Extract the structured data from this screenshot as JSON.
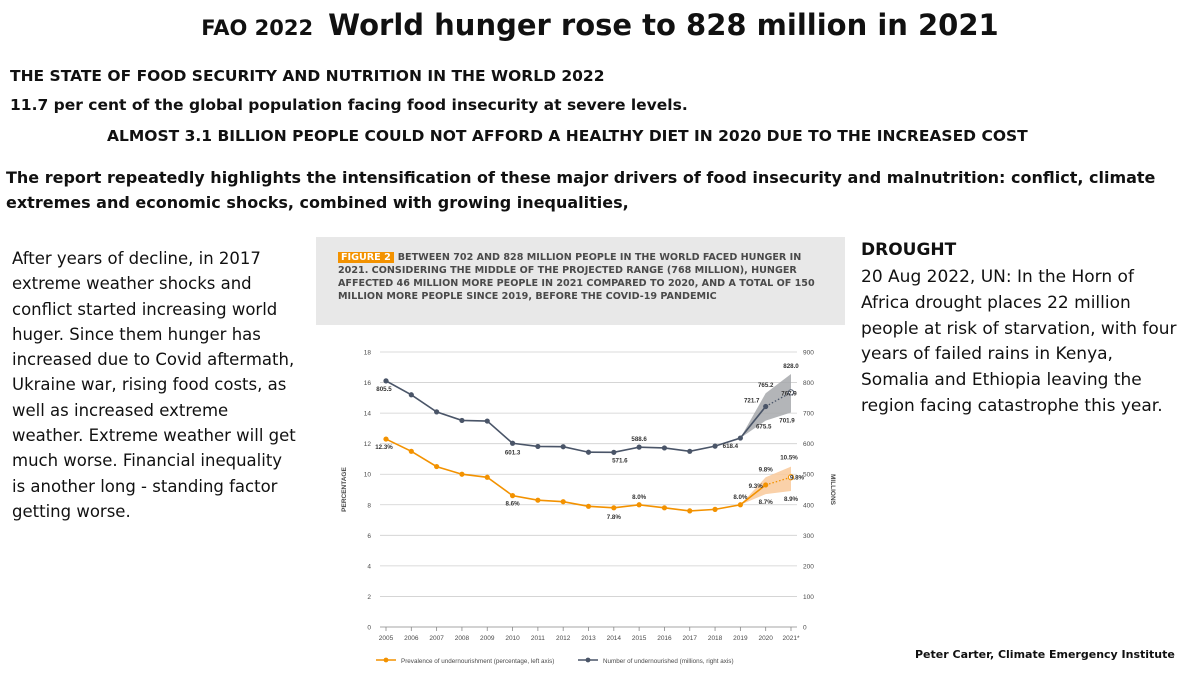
{
  "header": {
    "prefix": "FAO 2022",
    "title": "World hunger rose to 828 million in 2021"
  },
  "highlights": {
    "line1": "THE STATE OF FOOD SECURITY AND NUTRITION IN THE WORLD 2022",
    "line2": "11.7 per cent of the global population facing food insecurity at severe levels.",
    "line3": "ALMOST 3.1 BILLION PEOPLE COULD NOT AFFORD A HEALTHY DIET IN 2020 DUE TO THE  INCREASED COST",
    "line4": "The report repeatedly highlights the intensification of these major drivers of food insecurity and malnutrition: conflict, climate extremes and economic shocks, combined with growing inequalities,"
  },
  "left_text": "After years of decline, in 2017 extreme weather shocks and conflict started increasing world huger. Since them hunger has increased due to Covid aftermath, Ukraine war, rising food costs, as well as increased extreme weather. Extreme weather will get much worse. Financial inequality is another long - standing factor getting worse.",
  "drought": {
    "title": "DROUGHT",
    "text": "20 Aug 2022, UN: In the Horn of Africa drought places 22 million people at risk of starvation, with four years of failed rains in Kenya, Somalia and Ethiopia leaving the region facing catastrophe this year."
  },
  "credit": "Peter Carter, Climate Emergency Institute",
  "figure": {
    "tag": "FIGURE 2",
    "caption": "BETWEEN 702 AND 828 MILLION PEOPLE IN THE WORLD FACED HUNGER IN 2021. CONSIDERING THE MIDDLE OF THE PROJECTED RANGE (768 MILLION), HUNGER AFFECTED 46 MILLION MORE PEOPLE IN 2021 COMPARED TO 2020, AND A TOTAL OF 150 MILLION MORE PEOPLE SINCE 2019, BEFORE THE COVID-19 PANDEMIC"
  },
  "colors": {
    "orange": "#f39200",
    "orange_band": "#f9c99a",
    "gray_line": "#4a5568",
    "gray_band": "#a6a8ab",
    "grid": "#cfcfcf",
    "axis_text": "#4a4a4a"
  },
  "chart_data": {
    "type": "line",
    "x": [
      "2005",
      "2006",
      "2007",
      "2008",
      "2009",
      "2010",
      "2011",
      "2012",
      "2013",
      "2014",
      "2015",
      "2016",
      "2017",
      "2018",
      "2019",
      "2020",
      "2021*"
    ],
    "ylabel": "PERCENTAGE",
    "y2label": "MILLIONS",
    "ylim": [
      0,
      18
    ],
    "y_ticks": [
      0,
      2,
      4,
      6,
      8,
      10,
      12,
      14,
      16,
      18
    ],
    "y2lim": [
      0,
      900
    ],
    "y2_ticks": [
      0,
      100,
      200,
      300,
      400,
      500,
      600,
      700,
      800,
      900
    ],
    "grid": true,
    "legend_position": "bottom",
    "series": [
      {
        "name": "Prevalence of undernourishment (percentage, left axis)",
        "axis": "left",
        "color": "#f39200",
        "values": [
          12.3,
          11.5,
          10.5,
          10.0,
          9.8,
          8.6,
          8.3,
          8.2,
          7.9,
          7.8,
          8.0,
          7.8,
          7.6,
          7.7,
          8.0,
          9.3,
          9.8
        ],
        "projection_range_2020": [
          8.7,
          9.8
        ],
        "projection_range_2021": [
          8.9,
          10.5
        ]
      },
      {
        "name": "Number of undernourished (millions, right axis)",
        "axis": "right",
        "color": "#4a5568",
        "values": [
          805.5,
          760,
          704,
          676,
          674,
          601.3,
          591,
          590,
          572,
          571.6,
          588.6,
          586,
          575,
          592,
          618.4,
          721.7,
          767.9
        ],
        "projection_range_2020": [
          675.5,
          765.2
        ],
        "projection_range_2021": [
          701.9,
          828.0
        ]
      }
    ],
    "annotations": [
      {
        "x": "2005",
        "axis": "right",
        "y": 805.5,
        "text": "805.5"
      },
      {
        "x": "2010",
        "axis": "right",
        "y": 601.3,
        "text": "601.3"
      },
      {
        "x": "2014",
        "axis": "right",
        "y": 571.6,
        "text": "571.6"
      },
      {
        "x": "2015",
        "axis": "right",
        "y": 588.6,
        "text": "588.6"
      },
      {
        "x": "2019",
        "axis": "right",
        "y": 618.4,
        "text": "618.4"
      },
      {
        "x": "2020",
        "axis": "right",
        "y": 721.7,
        "text": "721.7"
      },
      {
        "x": "2020",
        "axis": "right",
        "y": 765.2,
        "text": "765.2"
      },
      {
        "x": "2020",
        "axis": "right",
        "y": 675.5,
        "text": "675.5"
      },
      {
        "x": "2021*",
        "axis": "right",
        "y": 828.0,
        "text": "828.0"
      },
      {
        "x": "2021*",
        "axis": "right",
        "y": 767.9,
        "text": "767.9"
      },
      {
        "x": "2021*",
        "axis": "right",
        "y": 701.9,
        "text": "701.9"
      },
      {
        "x": "2005",
        "axis": "left",
        "y": 12.3,
        "text": "12.3%"
      },
      {
        "x": "2010",
        "axis": "left",
        "y": 8.6,
        "text": "8.6%"
      },
      {
        "x": "2014",
        "axis": "left",
        "y": 7.8,
        "text": "7.8%"
      },
      {
        "x": "2015",
        "axis": "left",
        "y": 8.0,
        "text": "8.0%"
      },
      {
        "x": "2019",
        "axis": "left",
        "y": 8.0,
        "text": "8.0%"
      },
      {
        "x": "2020",
        "axis": "left",
        "y": 9.3,
        "text": "9.3%"
      },
      {
        "x": "2020",
        "axis": "left",
        "y": 9.8,
        "text": "9.8%"
      },
      {
        "x": "2020",
        "axis": "left",
        "y": 8.7,
        "text": "8.7%"
      },
      {
        "x": "2021*",
        "axis": "left",
        "y": 10.5,
        "text": "10.5%"
      },
      {
        "x": "2021*",
        "axis": "left",
        "y": 9.8,
        "text": "9.8%"
      },
      {
        "x": "2021*",
        "axis": "left",
        "y": 8.9,
        "text": "8.9%"
      }
    ]
  }
}
